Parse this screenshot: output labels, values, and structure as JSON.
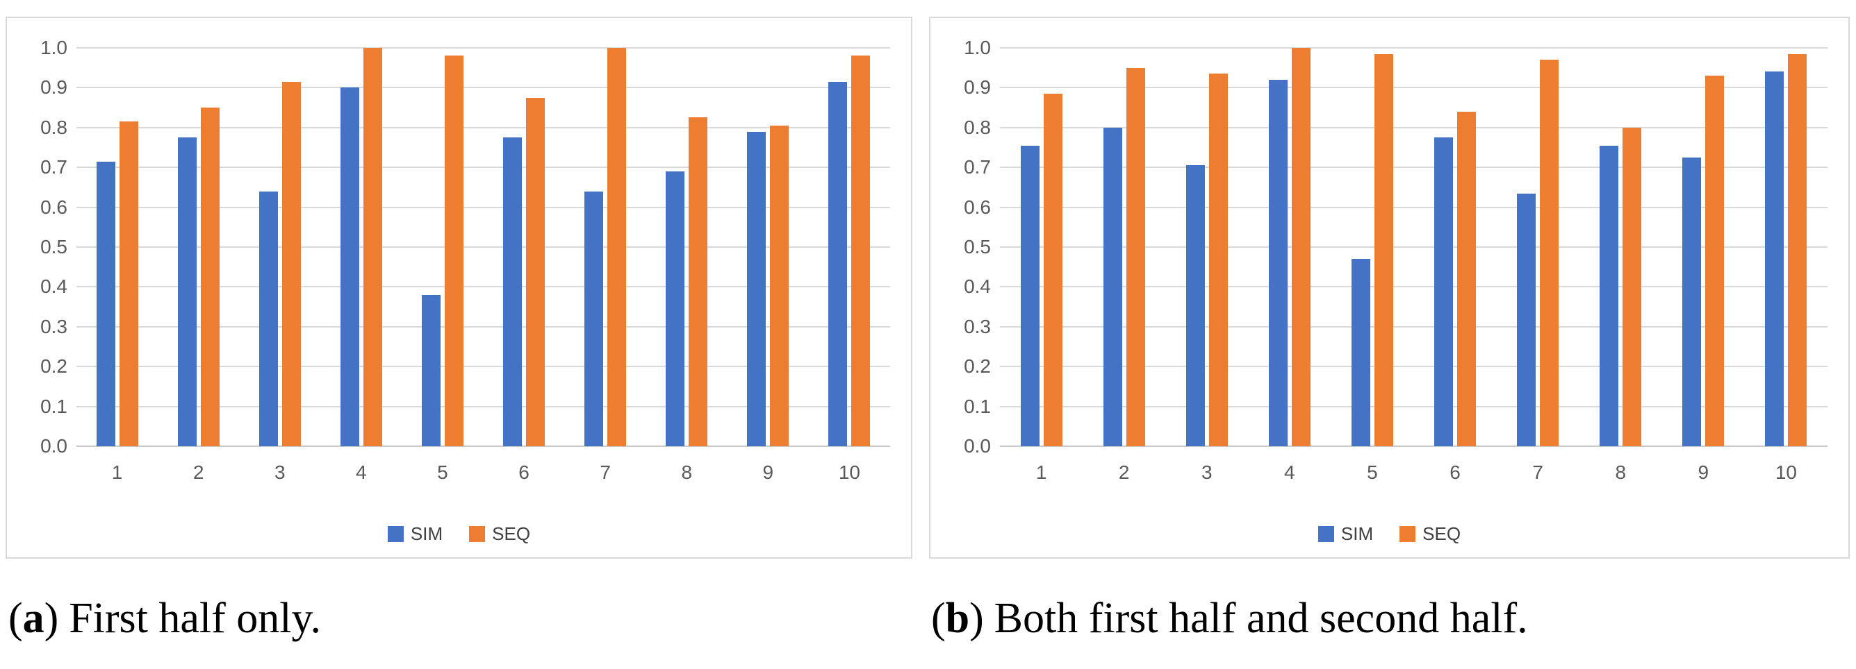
{
  "figure": {
    "background": "#FFFFFF",
    "panel_border_color": "#D9D9D9",
    "gridline_color": "#D9D9D9",
    "tick_text_color": "#595959"
  },
  "chart_data": [
    {
      "id": "a",
      "type": "bar",
      "title": "",
      "categories": [
        "1",
        "2",
        "3",
        "4",
        "5",
        "6",
        "7",
        "8",
        "9",
        "10"
      ],
      "series": [
        {
          "name": "SIM",
          "color": "#4472C4",
          "values": [
            0.715,
            0.775,
            0.64,
            0.9,
            0.38,
            0.775,
            0.64,
            0.69,
            0.79,
            0.915
          ]
        },
        {
          "name": "SEQ",
          "color": "#ED7D31",
          "values": [
            0.815,
            0.85,
            0.915,
            1.0,
            0.98,
            0.875,
            1.0,
            0.825,
            0.805,
            0.98
          ]
        }
      ],
      "xlabel": "",
      "ylabel": "",
      "ylim": [
        0.0,
        1.0
      ],
      "ytick_step": 0.1,
      "yticks": [
        "0.0",
        "0.1",
        "0.2",
        "0.3",
        "0.4",
        "0.5",
        "0.6",
        "0.7",
        "0.8",
        "0.9",
        "1.0"
      ],
      "grid": true,
      "legend_position": "bottom"
    },
    {
      "id": "b",
      "type": "bar",
      "title": "",
      "categories": [
        "1",
        "2",
        "3",
        "4",
        "5",
        "6",
        "7",
        "8",
        "9",
        "10"
      ],
      "series": [
        {
          "name": "SIM",
          "color": "#4472C4",
          "values": [
            0.755,
            0.8,
            0.705,
            0.92,
            0.47,
            0.775,
            0.635,
            0.755,
            0.725,
            0.94
          ]
        },
        {
          "name": "SEQ",
          "color": "#ED7D31",
          "values": [
            0.885,
            0.95,
            0.935,
            1.0,
            0.985,
            0.84,
            0.97,
            0.8,
            0.93,
            0.985
          ]
        }
      ],
      "xlabel": "",
      "ylabel": "",
      "ylim": [
        0.0,
        1.0
      ],
      "ytick_step": 0.1,
      "yticks": [
        "0.0",
        "0.1",
        "0.2",
        "0.3",
        "0.4",
        "0.5",
        "0.6",
        "0.7",
        "0.8",
        "0.9",
        "1.0"
      ],
      "grid": true,
      "legend_position": "bottom"
    }
  ],
  "captions": {
    "a": {
      "open": "(",
      "marker": "a",
      "close": ")",
      "text": "First half only."
    },
    "b": {
      "open": "(",
      "marker": "b",
      "close": ")",
      "text": "Both first half and second half."
    }
  }
}
